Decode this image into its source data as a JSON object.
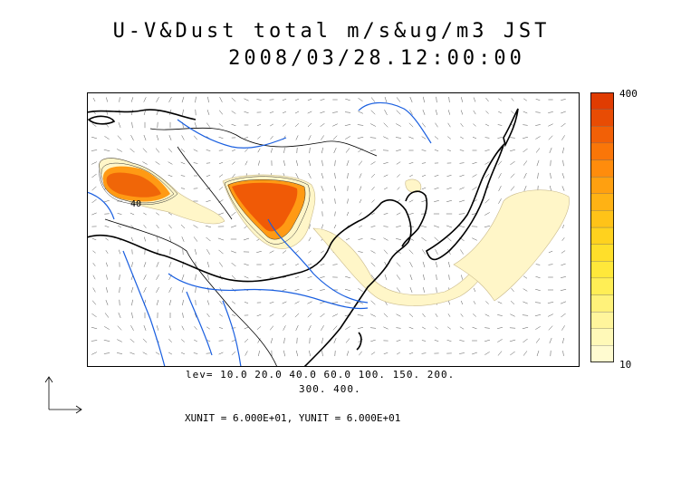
{
  "title": "U-V&Dust total m/s&ug/m3 JST",
  "datetime": "2008/03/28.12:00:00",
  "colorbar": {
    "max_label": "400",
    "min_label": "10",
    "colors": [
      "#fffbd0",
      "#fff9b8",
      "#fff59c",
      "#fff27a",
      "#ffee55",
      "#ffe83a",
      "#ffdf2a",
      "#ffd21e",
      "#ffc318",
      "#ffb214",
      "#ffa010",
      "#ff8c0c",
      "#fa7608",
      "#f26006",
      "#e84c04",
      "#e03c02"
    ]
  },
  "levels_line1": "lev= 10.0 20.0 40.0 60.0 100. 150. 200.",
  "levels_line2": "300. 400.",
  "units": "XUNIT = 6.000E+01, YUNIT = 6.000E+01",
  "contour_label": "40",
  "colors": {
    "coast": "#000000",
    "rivers": "#1a5fe0",
    "dust_low": "#fff6c8",
    "dust_high": "#ee5a10"
  }
}
